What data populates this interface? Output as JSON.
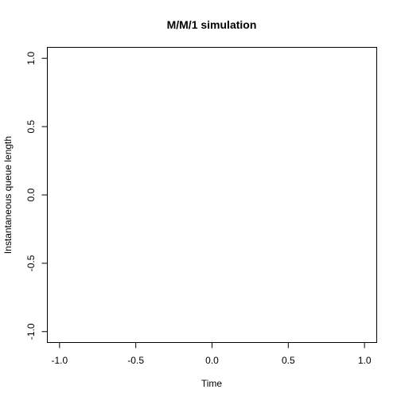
{
  "chart_data": {
    "type": "line",
    "title": "M/M/1 simulation",
    "xlabel": "Time",
    "ylabel": "Instantaneous queue length",
    "xlim": [
      -1.08,
      1.08
    ],
    "ylim": [
      -1.08,
      1.08
    ],
    "xticks": [
      -1.0,
      -0.5,
      0.0,
      0.5,
      1.0
    ],
    "yticks": [
      -1.0,
      -0.5,
      0.0,
      0.5,
      1.0
    ],
    "xtick_labels": [
      "-1.0",
      "-0.5",
      "0.0",
      "0.5",
      "1.0"
    ],
    "ytick_labels": [
      "-1.0",
      "-0.5",
      "0.0",
      "0.5",
      "1.0"
    ],
    "series": [],
    "grid": false
  }
}
